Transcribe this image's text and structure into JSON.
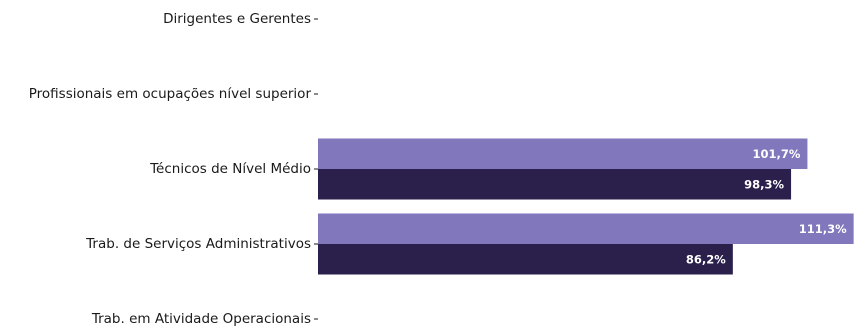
{
  "chart_data": {
    "type": "bar",
    "orientation": "horizontal",
    "categories": [
      "Dirigentes e Gerentes",
      "Profissionais em ocupações nível superior",
      "Técnicos de Nível Médio",
      "Trab. de Serviços Administrativos",
      "Trab. em Atividade Operacionais"
    ],
    "series": [
      {
        "color": "#8177bd",
        "values": [
          null,
          null,
          101.7,
          111.3,
          null
        ],
        "labels": [
          "",
          "",
          "101,7%",
          "111,3%",
          ""
        ]
      },
      {
        "color": "#2b1f4b",
        "values": [
          null,
          null,
          98.3,
          86.2,
          null
        ],
        "labels": [
          "",
          "",
          "98,3%",
          "86,2%",
          ""
        ]
      }
    ],
    "xlim": [
      0,
      112
    ],
    "title": "",
    "xlabel": "",
    "ylabel": "",
    "grid": false
  }
}
